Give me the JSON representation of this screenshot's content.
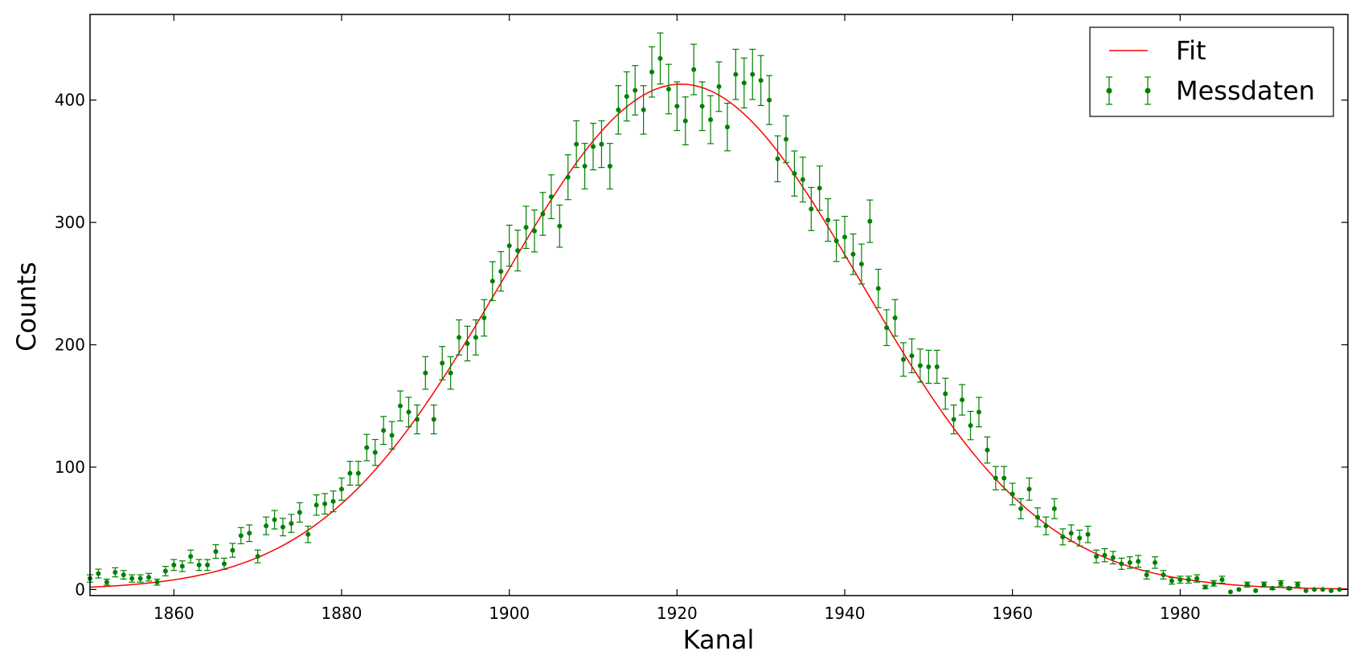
{
  "chart_data": {
    "type": "scatter",
    "xlabel": "Kanal",
    "ylabel": "Counts",
    "xlim": [
      1850,
      2000
    ],
    "ylim": [
      -5,
      470
    ],
    "x_ticks": [
      1860,
      1880,
      1900,
      1920,
      1940,
      1960,
      1980
    ],
    "y_ticks": [
      0,
      100,
      200,
      300,
      400
    ],
    "grid": false,
    "legend_position": "top-right",
    "series": [
      {
        "name": "Fit",
        "kind": "line",
        "color": "#ff0000",
        "model": "gaussian",
        "amplitude": 413,
        "mean": 1920.5,
        "sigma": 21.5
      },
      {
        "name": "Messdaten",
        "kind": "errorbar",
        "color": "#008000",
        "x": [
          1850,
          1851,
          1852,
          1853,
          1854,
          1855,
          1856,
          1857,
          1858,
          1859,
          1860,
          1861,
          1862,
          1863,
          1864,
          1865,
          1866,
          1867,
          1868,
          1869,
          1870,
          1871,
          1872,
          1873,
          1874,
          1875,
          1876,
          1877,
          1878,
          1879,
          1880,
          1881,
          1882,
          1883,
          1884,
          1885,
          1886,
          1887,
          1888,
          1889,
          1890,
          1891,
          1892,
          1893,
          1894,
          1895,
          1896,
          1897,
          1898,
          1899,
          1900,
          1901,
          1902,
          1903,
          1904,
          1905,
          1906,
          1907,
          1908,
          1909,
          1910,
          1911,
          1912,
          1913,
          1914,
          1915,
          1916,
          1917,
          1918,
          1919,
          1920,
          1921,
          1922,
          1923,
          1924,
          1925,
          1926,
          1927,
          1928,
          1929,
          1930,
          1931,
          1932,
          1933,
          1934,
          1935,
          1936,
          1937,
          1938,
          1939,
          1940,
          1941,
          1942,
          1943,
          1944,
          1945,
          1946,
          1947,
          1948,
          1949,
          1950,
          1951,
          1952,
          1953,
          1954,
          1955,
          1956,
          1957,
          1958,
          1959,
          1960,
          1961,
          1962,
          1963,
          1964,
          1965,
          1966,
          1967,
          1968,
          1969,
          1970,
          1971,
          1972,
          1973,
          1974,
          1975,
          1976,
          1977,
          1978,
          1979,
          1980,
          1981,
          1982,
          1983,
          1984,
          1985,
          1986,
          1987,
          1988,
          1989,
          1990,
          1991,
          1992,
          1993,
          1994,
          1995,
          1996,
          1997,
          1998,
          1999
        ],
        "y": [
          9,
          13,
          6,
          14,
          12,
          9,
          9,
          10,
          6,
          15,
          20,
          19,
          27,
          20,
          20,
          31,
          21,
          32,
          44,
          46,
          27,
          52,
          57,
          51,
          54,
          63,
          45,
          69,
          70,
          72,
          82,
          95,
          95,
          116,
          112,
          130,
          126,
          150,
          145,
          139,
          177,
          139,
          185,
          177,
          206,
          201,
          206,
          222,
          252,
          260,
          281,
          277,
          296,
          293,
          307,
          321,
          297,
          337,
          364,
          346,
          362,
          364,
          346,
          392,
          403,
          408,
          392,
          423,
          434,
          409,
          395,
          383,
          425,
          395,
          384,
          411,
          378,
          421,
          414,
          421,
          416,
          400,
          352,
          368,
          340,
          335,
          311,
          328,
          302,
          285,
          288,
          274,
          266,
          301,
          246,
          214,
          222,
          188,
          191,
          183,
          182,
          182,
          160,
          139,
          155,
          134,
          145,
          114,
          91,
          91,
          78,
          66,
          82,
          59,
          52,
          66,
          43,
          46,
          42,
          45,
          27,
          28,
          26,
          21,
          22,
          23,
          12,
          22,
          12,
          7,
          8,
          8,
          9,
          2,
          5,
          8,
          -2,
          0,
          4,
          -1,
          4,
          1,
          5,
          1,
          4,
          -1,
          0,
          0,
          -1,
          0
        ]
      }
    ]
  }
}
